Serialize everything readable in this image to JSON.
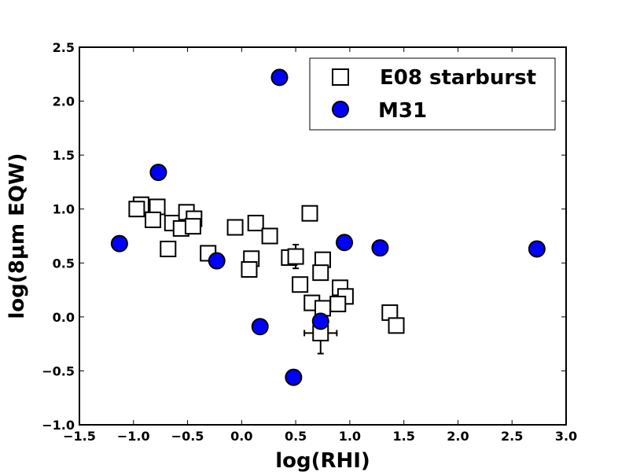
{
  "chart_data": {
    "type": "scatter",
    "xlabel": "log(RHI)",
    "ylabel": "log(8μm EQW)",
    "xlim": [
      -1.5,
      3.0
    ],
    "ylim": [
      -1.0,
      2.5
    ],
    "xticks": [
      "−1.5",
      "−1.0",
      "−0.5",
      "0.0",
      "0.5",
      "1.0",
      "1.5",
      "2.0",
      "2.5",
      "3.0"
    ],
    "yticks": [
      "−1.0",
      "−0.5",
      "0.0",
      "0.5",
      "1.0",
      "1.5",
      "2.0",
      "2.5"
    ],
    "xtick_values": [
      -1.5,
      -1.0,
      -0.5,
      0.0,
      0.5,
      1.0,
      1.5,
      2.0,
      2.5,
      3.0
    ],
    "ytick_values": [
      -1.0,
      -0.5,
      0.0,
      0.5,
      1.0,
      1.5,
      2.0,
      2.5
    ],
    "legend_position": "top-right",
    "grid": false,
    "series": [
      {
        "name": "E08 starburst",
        "marker": "square",
        "color": "#ffffff",
        "edge_color": "#000000",
        "points": [
          [
            -0.93,
            1.04
          ],
          [
            -0.97,
            1.0
          ],
          [
            -0.78,
            1.02
          ],
          [
            -0.82,
            0.9
          ],
          [
            -0.64,
            0.87
          ],
          [
            -0.56,
            0.82
          ],
          [
            -0.51,
            0.97
          ],
          [
            -0.44,
            0.91
          ],
          [
            -0.45,
            0.84
          ],
          [
            -0.68,
            0.63
          ],
          [
            -0.31,
            0.59
          ],
          [
            -0.06,
            0.83
          ],
          [
            0.13,
            0.87
          ],
          [
            0.26,
            0.75
          ],
          [
            0.09,
            0.54
          ],
          [
            0.07,
            0.44
          ],
          [
            0.44,
            0.55
          ],
          [
            0.5,
            0.56
          ],
          [
            0.54,
            0.3
          ],
          [
            0.63,
            0.96
          ],
          [
            0.75,
            0.53
          ],
          [
            0.73,
            0.41
          ],
          [
            0.65,
            0.13
          ],
          [
            0.75,
            0.08
          ],
          [
            0.91,
            0.27
          ],
          [
            0.96,
            0.19
          ],
          [
            0.89,
            0.12
          ],
          [
            0.73,
            -0.15
          ],
          [
            1.37,
            0.04
          ],
          [
            1.43,
            -0.08
          ]
        ]
      },
      {
        "name": "M31",
        "marker": "circle",
        "color": "#0000ff",
        "edge_color": "#000000",
        "points": [
          [
            -1.13,
            0.68
          ],
          [
            -0.77,
            1.34
          ],
          [
            -0.23,
            0.52
          ],
          [
            0.17,
            -0.09
          ],
          [
            0.35,
            2.22
          ],
          [
            0.48,
            -0.56
          ],
          [
            0.73,
            -0.04
          ],
          [
            0.95,
            0.69
          ],
          [
            1.28,
            0.64
          ],
          [
            2.73,
            0.63
          ]
        ]
      }
    ],
    "error_bars": [
      {
        "x": 0.5,
        "y": 0.56,
        "xerr": 0.0,
        "yerr": 0.11
      },
      {
        "x": 0.73,
        "y": -0.15,
        "xerr": 0.15,
        "yerr": 0.19
      }
    ]
  }
}
